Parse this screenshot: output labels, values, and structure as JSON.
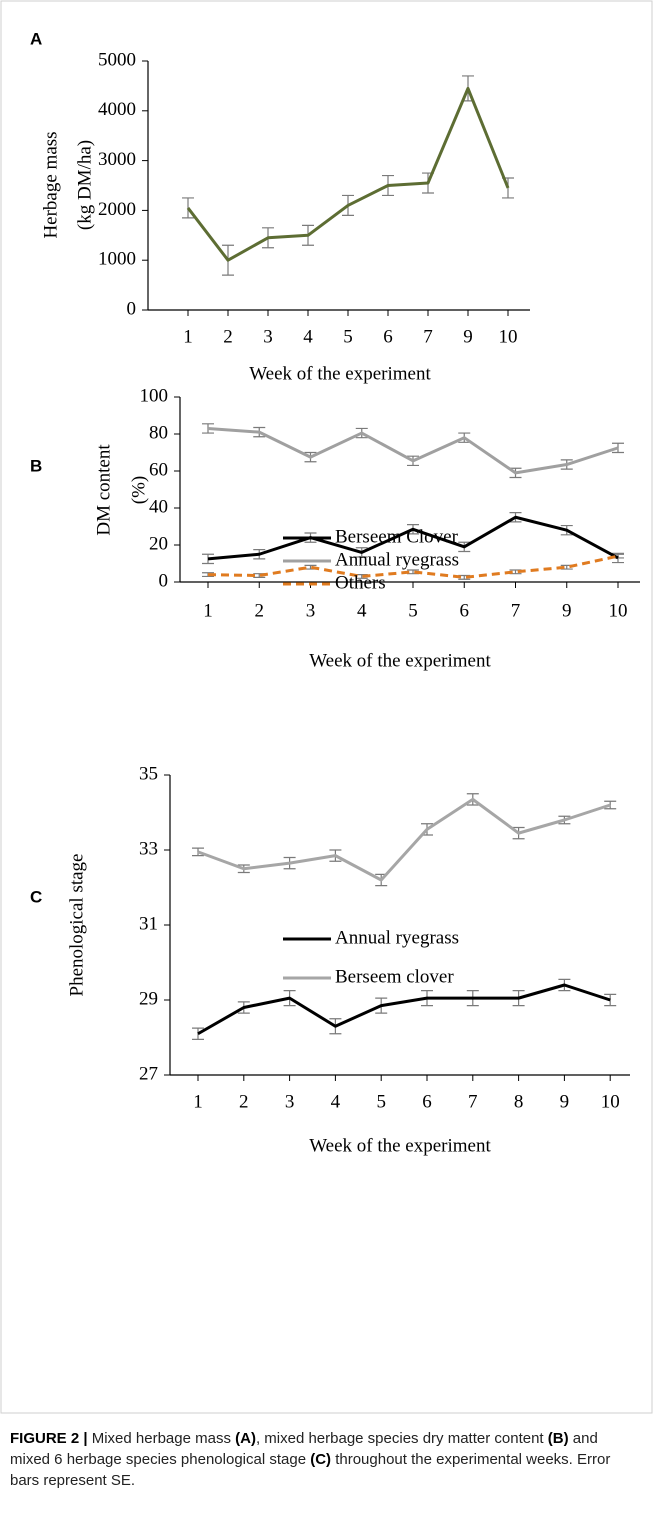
{
  "chart_data": [
    {
      "type": "line",
      "panel_label": "A",
      "ylabel_lines": [
        "Herbage mass",
        "(kg DM/ha)"
      ],
      "xlabel": "Week of the experiment",
      "categories": [
        "1",
        "2",
        "3",
        "4",
        "5",
        "6",
        "7",
        "9",
        "10"
      ],
      "values": [
        2050,
        1000,
        1450,
        1500,
        2100,
        2500,
        2550,
        4450,
        2450
      ],
      "errors": [
        200,
        300,
        200,
        200,
        200,
        200,
        200,
        250,
        200
      ],
      "color": "#5d6d33",
      "ylim": [
        0,
        5000
      ],
      "yticks": [
        0,
        1000,
        2000,
        3000,
        4000,
        5000
      ]
    },
    {
      "type": "line",
      "panel_label": "B",
      "ylabel_lines": [
        "DM content",
        "(%)"
      ],
      "xlabel": "Week of the experiment",
      "categories": [
        "1",
        "2",
        "3",
        "4",
        "5",
        "6",
        "7",
        "9",
        "10"
      ],
      "series": [
        {
          "name": "Berseem Clover",
          "color": "#000000",
          "dash": "solid",
          "values": [
            12.5,
            15,
            24,
            16,
            28.5,
            19,
            35,
            28,
            13
          ],
          "errors": [
            2.5,
            2.5,
            2.5,
            2.5,
            2.5,
            2.5,
            2.5,
            2.5,
            2.5
          ]
        },
        {
          "name": "Annual ryegrass",
          "color": "#a0a0a0",
          "dash": "solid",
          "values": [
            83,
            81,
            67.5,
            80.5,
            65.5,
            78,
            59,
            63.5,
            72.5
          ],
          "errors": [
            2.5,
            2.5,
            2.5,
            2.5,
            2.5,
            2.5,
            2.5,
            2.5,
            2.5
          ]
        },
        {
          "name": "Others",
          "color": "#e07b20",
          "dash": "dashed",
          "values": [
            4,
            3.5,
            8,
            3,
            5.5,
            2.5,
            5.5,
            8,
            14
          ],
          "errors": [
            1,
            1,
            1,
            1,
            1,
            1,
            1,
            1,
            1
          ]
        }
      ],
      "legend": "top",
      "ylim": [
        0,
        100
      ],
      "yticks": [
        0,
        20,
        40,
        60,
        80,
        100
      ]
    },
    {
      "type": "line",
      "panel_label": "C",
      "ylabel_lines": [
        "Phenological stage"
      ],
      "xlabel": "Week of the experiment",
      "categories": [
        "1",
        "2",
        "3",
        "4",
        "5",
        "6",
        "7",
        "8",
        "9",
        "10"
      ],
      "series": [
        {
          "name": "Annual ryegrass",
          "color": "#000000",
          "dash": "solid",
          "values": [
            28.1,
            28.8,
            29.05,
            28.3,
            28.85,
            29.05,
            29.05,
            29.05,
            29.4,
            29.0
          ],
          "errors": [
            0.15,
            0.15,
            0.2,
            0.2,
            0.2,
            0.2,
            0.2,
            0.2,
            0.15,
            0.15
          ]
        },
        {
          "name": "Berseem clover",
          "color": "#a6a6a6",
          "dash": "solid",
          "values": [
            32.95,
            32.5,
            32.65,
            32.85,
            32.2,
            33.55,
            34.35,
            33.45,
            33.8,
            34.2
          ],
          "errors": [
            0.1,
            0.1,
            0.15,
            0.15,
            0.15,
            0.15,
            0.15,
            0.15,
            0.1,
            0.1
          ]
        }
      ],
      "legend": "top",
      "ylim": [
        27,
        35
      ],
      "yticks": [
        27,
        29,
        31,
        33,
        35
      ]
    }
  ],
  "caption": [
    {
      "text": "FIGURE 2 |",
      "bold": true
    },
    {
      "text": " Mixed herbage mass ",
      "bold": false
    },
    {
      "text": "(A)",
      "bold": true
    },
    {
      "text": ", mixed herbage species dry matter content ",
      "bold": false
    },
    {
      "text": "(B)",
      "bold": true
    },
    {
      "text": " and mixed 6 herbage species phenological stage ",
      "bold": false
    },
    {
      "text": "(C)",
      "bold": true
    },
    {
      "text": " throughout the experimental weeks. Error bars represent SE.",
      "bold": false
    }
  ]
}
